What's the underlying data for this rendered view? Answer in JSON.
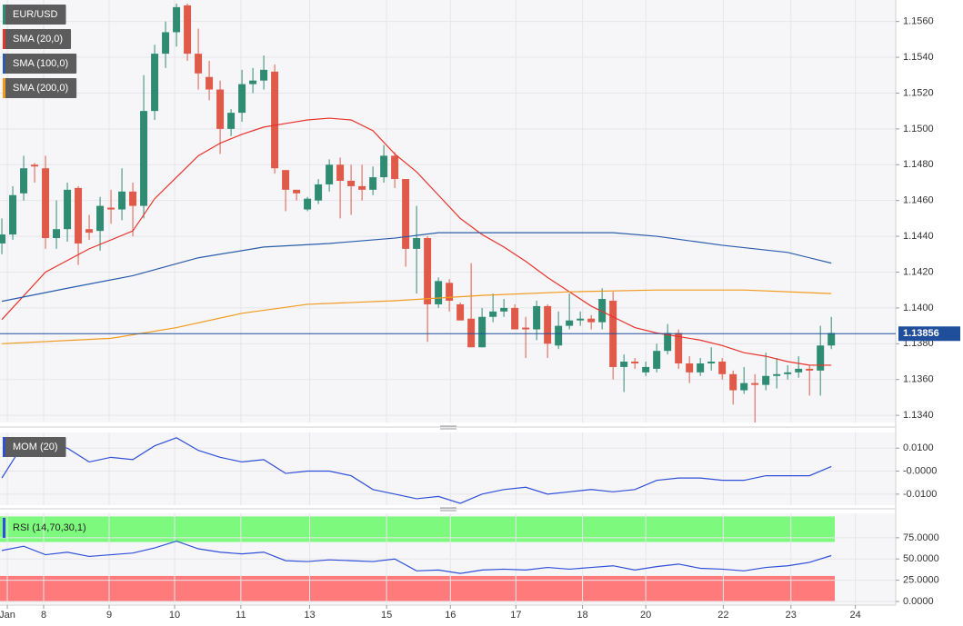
{
  "chart_data": [
    {
      "type": "candlestick",
      "name": "EUR/USD",
      "up_color": "#2f8c73",
      "down_color": "#e05a4a",
      "xlim": [
        -0.17,
        81.9
      ],
      "ylim": [
        1.1336,
        1.1572
      ],
      "yticks": [
        {
          "value": 1.134,
          "label": "1.1340"
        },
        {
          "value": 1.136,
          "label": "1.1360"
        },
        {
          "value": 1.138,
          "label": "1.1380"
        },
        {
          "value": 1.14,
          "label": "1.1400"
        },
        {
          "value": 1.142,
          "label": "1.1420"
        },
        {
          "value": 1.144,
          "label": "1.1440"
        },
        {
          "value": 1.146,
          "label": "1.1460"
        },
        {
          "value": 1.148,
          "label": "1.1480"
        },
        {
          "value": 1.15,
          "label": "1.1500"
        },
        {
          "value": 1.152,
          "label": "1.1520"
        },
        {
          "value": 1.154,
          "label": "1.1540"
        },
        {
          "value": 1.156,
          "label": "1.1560"
        }
      ],
      "grid": true,
      "last_price": 1.13856,
      "last_price_color": "#1f4e9a",
      "open": [
        1.1436,
        1.1441,
        1.1464,
        1.148,
        1.1478,
        1.1439,
        1.1444,
        1.1467,
        1.1444,
        1.1443,
        1.1456,
        1.1455,
        1.1465,
        1.1457,
        1.151,
        1.1542,
        1.1554,
        1.1569,
        1.1542,
        1.1529,
        1.1522,
        1.15,
        1.1509,
        1.1525,
        1.1527,
        1.1532,
        1.1477,
        1.1466,
        1.1455,
        1.146,
        1.1469,
        1.148,
        1.1471,
        1.1468,
        1.1466,
        1.1473,
        1.1485,
        1.1472,
        1.1433,
        1.1439,
        1.1402,
        1.1414,
        1.1402,
        1.1394,
        1.1378,
        1.1395,
        1.1398,
        1.14,
        1.1389,
        1.1388,
        1.1401,
        1.1379,
        1.139,
        1.1393,
        1.1394,
        1.1392,
        1.1404,
        1.1367,
        1.137,
        1.1364,
        1.1366,
        1.1376,
        1.1386,
        1.1369,
        1.1364,
        1.1369,
        1.137,
        1.1363,
        1.1354,
        1.1358,
        1.1357,
        1.1362,
        1.1363,
        1.1364,
        1.1366,
        1.1365,
        1.1379
      ],
      "high": [
        1.145,
        1.1468,
        1.1485,
        1.1481,
        1.1485,
        1.146,
        1.147,
        1.1468,
        1.1452,
        1.1462,
        1.1466,
        1.1478,
        1.147,
        1.153,
        1.1547,
        1.156,
        1.157,
        1.157,
        1.1556,
        1.1538,
        1.1527,
        1.1511,
        1.1533,
        1.1534,
        1.1541,
        1.1536,
        1.1477,
        1.1466,
        1.1462,
        1.1472,
        1.1483,
        1.1484,
        1.148,
        1.148,
        1.1479,
        1.1491,
        1.1487,
        1.1472,
        1.1457,
        1.144,
        1.1417,
        1.1416,
        1.1403,
        1.1425,
        1.14,
        1.1408,
        1.1405,
        1.1402,
        1.1395,
        1.1404,
        1.1402,
        1.1398,
        1.1408,
        1.1398,
        1.1396,
        1.1411,
        1.1409,
        1.1374,
        1.1372,
        1.137,
        1.138,
        1.1391,
        1.1388,
        1.1373,
        1.1372,
        1.1378,
        1.1372,
        1.1365,
        1.1367,
        1.1363,
        1.1375,
        1.1372,
        1.1368,
        1.1373,
        1.1368,
        1.139,
        1.1395
      ],
      "low": [
        1.143,
        1.1438,
        1.146,
        1.147,
        1.1433,
        1.1433,
        1.1437,
        1.1424,
        1.1438,
        1.1432,
        1.1447,
        1.1449,
        1.144,
        1.145,
        1.1505,
        1.1534,
        1.1546,
        1.1538,
        1.1522,
        1.1516,
        1.1486,
        1.1496,
        1.1504,
        1.152,
        1.1522,
        1.1475,
        1.1454,
        1.146,
        1.1454,
        1.1458,
        1.1465,
        1.145,
        1.1452,
        1.146,
        1.1463,
        1.147,
        1.1467,
        1.1423,
        1.1408,
        1.1381,
        1.14,
        1.1398,
        1.1393,
        1.1378,
        1.1378,
        1.1392,
        1.1395,
        1.1388,
        1.1372,
        1.1382,
        1.1372,
        1.1377,
        1.1388,
        1.139,
        1.1388,
        1.1388,
        1.136,
        1.1353,
        1.1366,
        1.1362,
        1.1364,
        1.1374,
        1.1366,
        1.1358,
        1.1362,
        1.1365,
        1.136,
        1.1346,
        1.1352,
        1.1336,
        1.1354,
        1.1355,
        1.136,
        1.1361,
        1.1351,
        1.1351,
        1.1377
      ],
      "close": [
        1.1441,
        1.1463,
        1.1478,
        1.1479,
        1.1439,
        1.1444,
        1.1466,
        1.1436,
        1.1442,
        1.1457,
        1.1455,
        1.1465,
        1.1457,
        1.151,
        1.1542,
        1.1554,
        1.1568,
        1.1542,
        1.1531,
        1.1522,
        1.15,
        1.1509,
        1.1525,
        1.1527,
        1.1533,
        1.1478,
        1.1466,
        1.1464,
        1.1461,
        1.1469,
        1.148,
        1.1471,
        1.1468,
        1.1466,
        1.1473,
        1.1485,
        1.1472,
        1.1433,
        1.1439,
        1.1402,
        1.1415,
        1.1404,
        1.1393,
        1.1378,
        1.1395,
        1.1398,
        1.14,
        1.1388,
        1.1388,
        1.1401,
        1.138,
        1.139,
        1.1393,
        1.1394,
        1.1392,
        1.1405,
        1.1367,
        1.137,
        1.1369,
        1.1367,
        1.1376,
        1.1386,
        1.1369,
        1.1364,
        1.1369,
        1.137,
        1.1363,
        1.1354,
        1.1358,
        1.1357,
        1.1362,
        1.1363,
        1.1364,
        1.1366,
        1.1365,
        1.1379,
        1.1386
      ],
      "series": [
        {
          "name": "SMA (20,0)",
          "color": "#e8322a",
          "x": [
            0,
            4,
            8,
            12,
            14,
            16,
            18,
            20,
            22,
            24,
            26,
            28,
            30,
            32,
            34,
            36,
            38,
            40,
            42,
            44,
            46,
            48,
            50,
            52,
            54,
            56,
            58,
            60,
            62,
            64,
            66,
            68,
            70,
            72,
            74,
            76
          ],
          "values": [
            1.13935,
            1.142,
            1.1433,
            1.1443,
            1.1461,
            1.1473,
            1.1485,
            1.1492,
            1.1497,
            1.1501,
            1.1503,
            1.1505,
            1.1506,
            1.1505,
            1.1499,
            1.1486,
            1.1476,
            1.1463,
            1.145,
            1.1441,
            1.1434,
            1.1426,
            1.1417,
            1.1409,
            1.1401,
            1.1395,
            1.1389,
            1.1386,
            1.1384,
            1.1382,
            1.1379,
            1.1375,
            1.1373,
            1.137,
            1.1368,
            1.1368
          ]
        },
        {
          "name": "SMA (100,0)",
          "color": "#2a5caa",
          "x": [
            0,
            6,
            12,
            18,
            24,
            30,
            36,
            40,
            48,
            56,
            60,
            66,
            72,
            76
          ],
          "values": [
            1.14037,
            1.1411,
            1.1418,
            1.1428,
            1.1434,
            1.1436,
            1.1439,
            1.1442,
            1.1442,
            1.1442,
            1.144,
            1.1435,
            1.1431,
            1.1425
          ]
        },
        {
          "name": "SMA (200,0)",
          "color": "#f39a1d",
          "x": [
            0,
            10,
            16,
            22,
            28,
            36,
            44,
            52,
            60,
            68,
            76
          ],
          "values": [
            1.138,
            1.1383,
            1.1389,
            1.1397,
            1.1402,
            1.1404,
            1.1407,
            1.1409,
            1.141,
            1.141,
            1.1408
          ]
        }
      ]
    },
    {
      "type": "line",
      "xlim": [
        -0.17,
        81.9
      ],
      "ylim": [
        -0.0148,
        0.0168
      ],
      "yticks": [
        {
          "value": -0.01,
          "label": "-0.0100"
        },
        {
          "value": 0,
          "label": "-0.0000"
        },
        {
          "value": 0.01,
          "label": "0.0100"
        }
      ],
      "grid": true,
      "series": [
        {
          "name": "MOM (20)",
          "color": "#2f4fd8",
          "x": [
            0,
            2,
            4,
            6,
            8,
            10,
            12,
            14,
            16,
            18,
            20,
            22,
            24,
            26,
            28,
            30,
            32,
            34,
            36,
            38,
            40,
            42,
            44,
            46,
            48,
            50,
            52,
            54,
            56,
            58,
            60,
            62,
            64,
            66,
            68,
            70,
            72,
            74,
            76
          ],
          "values": [
            -0.003,
            0.012,
            0.011,
            0.01,
            0.004,
            0.006,
            0.005,
            0.011,
            0.0145,
            0.009,
            0.006,
            0.004,
            0.005,
            -0.001,
            0.0,
            0.0,
            -0.002,
            -0.008,
            -0.01,
            -0.012,
            -0.011,
            -0.014,
            -0.01,
            -0.008,
            -0.007,
            -0.01,
            -0.009,
            -0.008,
            -0.009,
            -0.008,
            -0.004,
            -0.003,
            -0.003,
            -0.004,
            -0.004,
            -0.002,
            -0.002,
            -0.002,
            0.002
          ]
        }
      ]
    },
    {
      "type": "line",
      "xlim": [
        -0.17,
        81.9
      ],
      "ylim": [
        -3.2,
        103.7
      ],
      "yticks": [
        {
          "value": 0,
          "label": "0.0000"
        },
        {
          "value": 25,
          "label": "25.0000"
        },
        {
          "value": 50,
          "label": "50.0000"
        },
        {
          "value": 75,
          "label": "75.0000"
        }
      ],
      "grid": true,
      "bands": [
        {
          "from": 70,
          "to": 100,
          "color": "#7dfa7d"
        },
        {
          "from": 0,
          "to": 30,
          "color": "#ff7b7b"
        }
      ],
      "xticks": [
        {
          "value": 0.5,
          "label": "Jan"
        },
        {
          "value": 3.83,
          "label": "8"
        },
        {
          "value": 9.83,
          "label": "9"
        },
        {
          "value": 15.83,
          "label": "10"
        },
        {
          "value": 21.9,
          "label": "11"
        },
        {
          "value": 28.2,
          "label": "13"
        },
        {
          "value": 35.25,
          "label": "15"
        },
        {
          "value": 41.1,
          "label": "16"
        },
        {
          "value": 47.1,
          "label": "17"
        },
        {
          "value": 53.2,
          "label": "18"
        },
        {
          "value": 59,
          "label": "20"
        },
        {
          "value": 66.1,
          "label": "22"
        },
        {
          "value": 72.3,
          "label": "23"
        },
        {
          "value": 78.2,
          "label": "24"
        }
      ],
      "series": [
        {
          "name": "RSI (14,70,30,1)",
          "color": "#2f4fd8",
          "x": [
            0,
            2,
            4,
            6,
            8,
            10,
            12,
            14,
            16,
            18,
            20,
            22,
            24,
            26,
            28,
            30,
            32,
            34,
            36,
            38,
            40,
            42,
            44,
            46,
            48,
            50,
            52,
            54,
            56,
            58,
            60,
            62,
            64,
            66,
            68,
            70,
            72,
            74,
            76
          ],
          "values": [
            60,
            65,
            55,
            58,
            53,
            55,
            57,
            63,
            71,
            62,
            58,
            56,
            58,
            48,
            47,
            49,
            48,
            47,
            50,
            36,
            37,
            33,
            37,
            38,
            37,
            40,
            38,
            40,
            42,
            37,
            41,
            44,
            39,
            38,
            36,
            40,
            42,
            46,
            54
          ]
        }
      ]
    }
  ]
}
